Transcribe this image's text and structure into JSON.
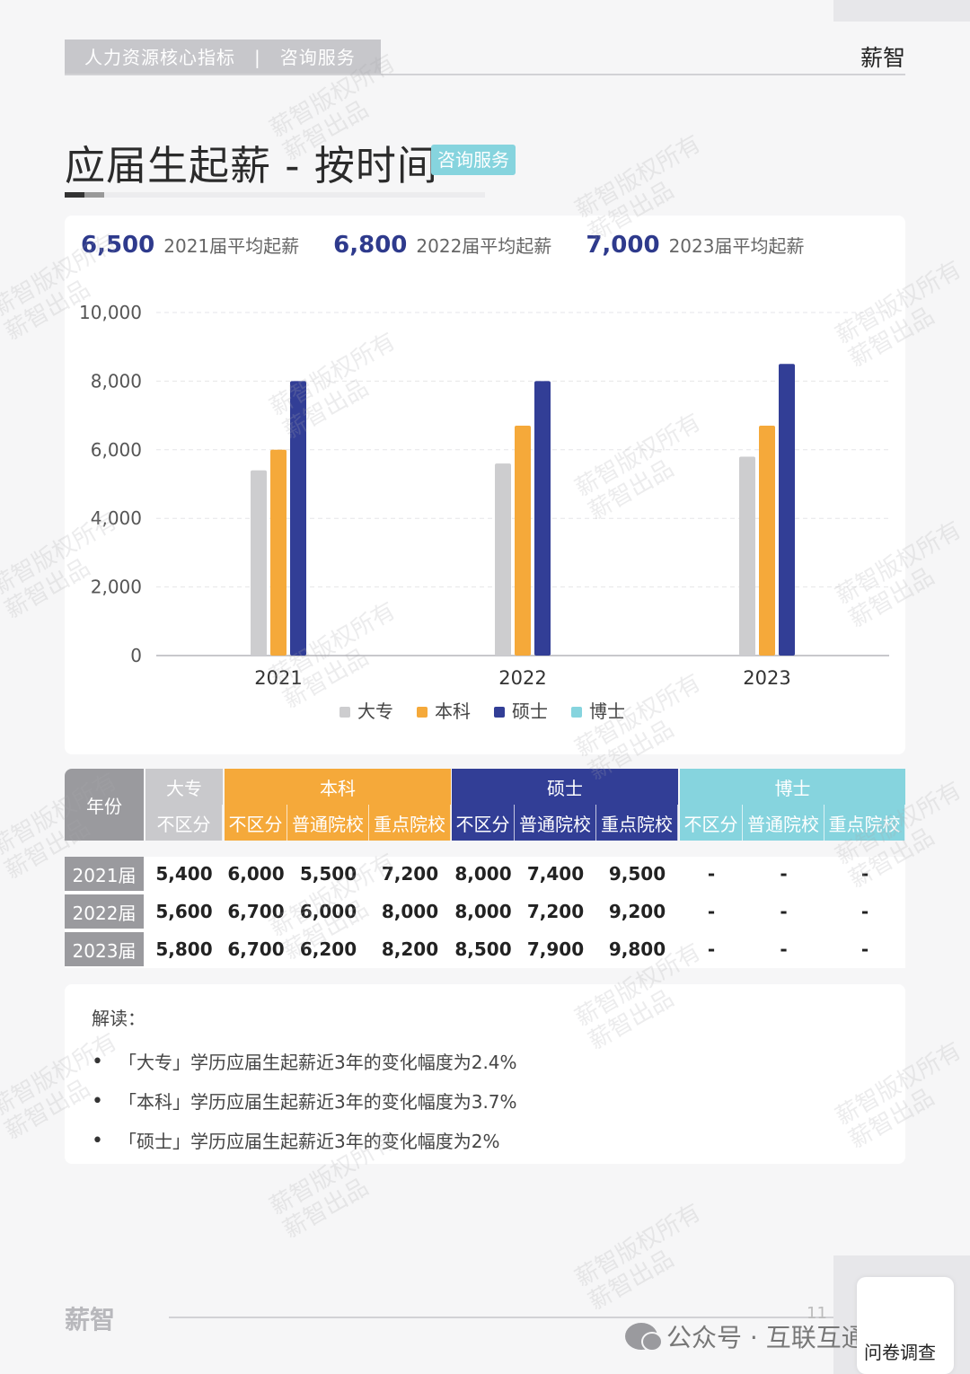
{
  "header": {
    "section": "人力资源核心指标　|　咨询服务",
    "brand": "薪智"
  },
  "title": {
    "text": "应届生起薪 - 按时间",
    "badge": "咨询服务"
  },
  "kpis": [
    {
      "value": "6,500",
      "label": "2021届平均起薪"
    },
    {
      "value": "6,800",
      "label": "2022届平均起薪"
    },
    {
      "value": "7,000",
      "label": "2023届平均起薪"
    }
  ],
  "colors": {
    "dazhuan": "#cdcdcf",
    "benke": "#f5a93a",
    "shuoshi": "#323e96",
    "boshi": "#86d4de",
    "kpi": "#2e3a8c"
  },
  "chart_data": {
    "type": "bar",
    "categories": [
      "2021",
      "2022",
      "2023"
    ],
    "series": [
      {
        "name": "大专",
        "values": [
          5400,
          5600,
          5800
        ]
      },
      {
        "name": "本科",
        "values": [
          6000,
          6700,
          6700
        ]
      },
      {
        "name": "硕士",
        "values": [
          8000,
          8000,
          8500
        ]
      },
      {
        "name": "博士",
        "values": [
          null,
          null,
          null
        ]
      }
    ],
    "yticks": [
      "0",
      "2,000",
      "4,000",
      "6,000",
      "8,000",
      "10,000"
    ],
    "ylim": [
      0,
      10000
    ],
    "grid": true,
    "legend": "bottom"
  },
  "table": {
    "year_header": "年份",
    "groups": [
      "大专",
      "本科",
      "硕士",
      "博士"
    ],
    "subheaders": [
      "不区分",
      "不区分",
      "普通院校",
      "重点院校",
      "不区分",
      "普通院校",
      "重点院校",
      "不区分",
      "普通院校",
      "重点院校"
    ],
    "rows": [
      {
        "year": "2021届",
        "cells": [
          "5,400",
          "6,000",
          "5,500",
          "7,200",
          "8,000",
          "7,400",
          "9,500",
          "-",
          "-",
          "-"
        ]
      },
      {
        "year": "2022届",
        "cells": [
          "5,600",
          "6,700",
          "6,000",
          "8,000",
          "8,000",
          "7,200",
          "9,200",
          "-",
          "-",
          "-"
        ]
      },
      {
        "year": "2023届",
        "cells": [
          "5,800",
          "6,700",
          "6,200",
          "8,200",
          "8,500",
          "7,900",
          "9,800",
          "-",
          "-",
          "-"
        ]
      }
    ]
  },
  "notes": {
    "title": "解读：",
    "items": [
      "「大专」学历应届生起薪近3年的变化幅度为2.4%",
      "「本科」学历应届生起薪近3年的变化幅度为3.7%",
      "「硕士」学历应届生起薪近3年的变化幅度为2%"
    ]
  },
  "footer": {
    "logo": "薪智",
    "page": "11",
    "wechat": "公众号 · 互联互通社区",
    "survey": "问卷调查"
  },
  "watermark": {
    "line1": "薪智版权所有",
    "line2": "薪智出品"
  }
}
